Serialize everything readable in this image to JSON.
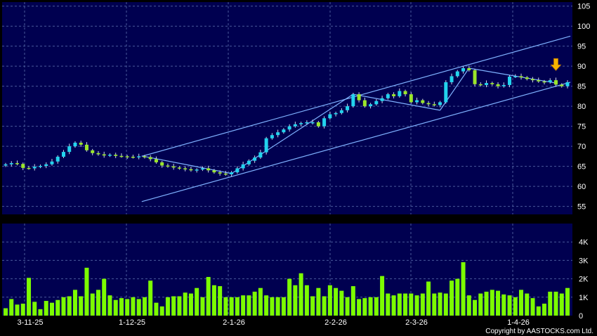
{
  "colors": {
    "background": "#000000",
    "plot_bg": "#000050",
    "grid": "#4a5a9a",
    "up_candle": "#22d3ee",
    "down_candle": "#9ae62a",
    "wick": "#cfd6ee",
    "trendline": "#7fb2ff",
    "volume_bar": "#7cfc00",
    "arrow": "#f5b400",
    "axis_text": "#ffffff"
  },
  "copyright": "Copyright by AASTOCKS.com Ltd.",
  "chart_data": [
    {
      "type": "candlestick",
      "title": "",
      "ylim": [
        53,
        106
      ],
      "y_ticks": [
        "105",
        "100",
        "95",
        "90",
        "85",
        "80",
        "75",
        "70",
        "65",
        "60",
        "55"
      ],
      "grid": true,
      "price_series": [
        65.5,
        65.8,
        65.6,
        64.6,
        64.5,
        64.9,
        65.1,
        65.5,
        66.2,
        67.4,
        68.6,
        70.0,
        70.9,
        70.4,
        69.0,
        68.3,
        68.0,
        67.7,
        67.9,
        67.6,
        67.5,
        67.4,
        67.3,
        67.5,
        67.3,
        66.8,
        66.0,
        65.2,
        65.0,
        64.7,
        64.5,
        64.3,
        64.0,
        64.2,
        64.5,
        64.0,
        63.5,
        63.2,
        63.0,
        63.5,
        64.5,
        65.5,
        66.4,
        67.2,
        68.5,
        72.0,
        72.8,
        73.5,
        74.2,
        75.0,
        75.5,
        75.8,
        76.0,
        76.0,
        75.0,
        77.0,
        78.0,
        78.3,
        79.0,
        80.0,
        83.0,
        81.5,
        80.0,
        80.5,
        81.3,
        82.0,
        83.0,
        82.5,
        83.8,
        83.0,
        81.0,
        81.5,
        80.8,
        80.5,
        80.3,
        81.0,
        86.0,
        87.5,
        88.7,
        89.5,
        89.0,
        85.5,
        85.3,
        85.8,
        85.5,
        85.0,
        85.3,
        87.4,
        87.5,
        87.2,
        86.8,
        86.5,
        86.2,
        86.0,
        86.5,
        85.4,
        85.0,
        86.0
      ],
      "volume_ylim": [
        0,
        5000
      ],
      "volume_ticks": [
        "4K",
        "3K",
        "2K",
        "1K",
        "0"
      ],
      "volume_series": [
        400,
        900,
        600,
        650,
        2050,
        750,
        350,
        800,
        700,
        850,
        1000,
        1050,
        1400,
        1050,
        2600,
        1200,
        1400,
        2000,
        1100,
        850,
        950,
        900,
        1000,
        900,
        1000,
        1900,
        700,
        500,
        1000,
        1050,
        1050,
        1250,
        1200,
        1500,
        1000,
        2100,
        1650,
        1600,
        1000,
        1000,
        1000,
        1100,
        1100,
        1300,
        1500,
        1100,
        1000,
        1000,
        1000,
        2000,
        1650,
        2300,
        1650,
        1050,
        1500,
        1050,
        1650,
        1500,
        1350,
        1000,
        1600,
        900,
        950,
        1000,
        1000,
        2150,
        1200,
        1100,
        1200,
        1200,
        1200,
        1100,
        1200,
        1850,
        1200,
        1250,
        1200,
        1900,
        2000,
        2900,
        1100,
        850,
        1200,
        1300,
        1400,
        1350,
        1150,
        1100,
        1000,
        1400,
        1200,
        950,
        500,
        650,
        1300,
        1300,
        1200,
        1500
      ],
      "x_labels": [
        "3-11-25",
        "1-12-25",
        "2-1-26",
        "2-2-26",
        "2-3-26",
        "1-4-26"
      ],
      "annotations": [
        "ascending channel trendlines",
        "down arrow marker at latest price"
      ]
    }
  ]
}
